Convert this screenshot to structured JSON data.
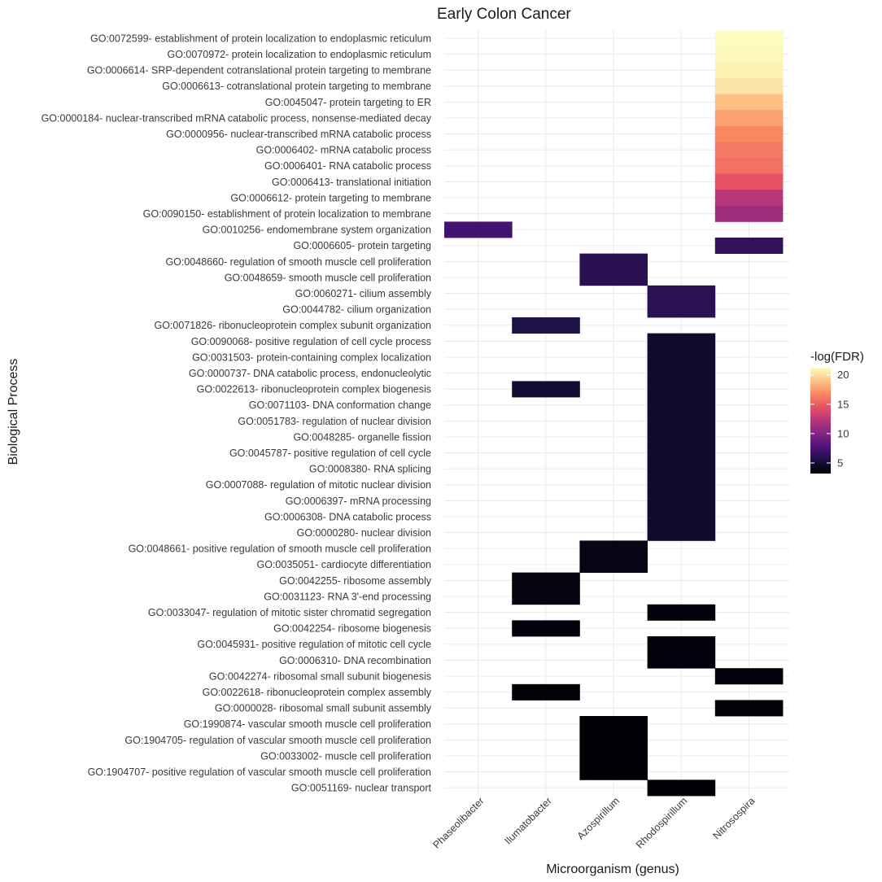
{
  "chart_data": {
    "type": "heatmap",
    "title": "Early Colon Cancer",
    "xlabel": "Microorganism (genus)",
    "ylabel": "Biological Process",
    "x_categories": [
      "Phaseolibacter",
      "Ilumatobacter",
      "Azospirillum",
      "Rhodospirillum",
      "Nitrosospira"
    ],
    "y_categories": [
      "GO:0072599- establishment of protein localization to endoplasmic reticulum",
      "GO:0070972- protein localization to endoplasmic reticulum",
      "GO:0006614- SRP-dependent cotranslational protein targeting to membrane",
      "GO:0006613- cotranslational protein targeting to membrane",
      "GO:0045047- protein targeting to ER",
      "GO:0000184- nuclear-transcribed mRNA catabolic process, nonsense-mediated decay",
      "GO:0000956- nuclear-transcribed mRNA catabolic process",
      "GO:0006402- mRNA catabolic process",
      "GO:0006401- RNA catabolic process",
      "GO:0006413- translational initiation",
      "GO:0006612- protein targeting to membrane",
      "GO:0090150- establishment of protein localization to membrane",
      "GO:0010256- endomembrane system organization",
      "GO:0006605- protein targeting",
      "GO:0048660- regulation of smooth muscle cell proliferation",
      "GO:0048659- smooth muscle cell proliferation",
      "GO:0060271- cilium assembly",
      "GO:0044782- cilium organization",
      "GO:0071826- ribonucleoprotein complex subunit organization",
      "GO:0090068- positive regulation of cell cycle process",
      "GO:0031503- protein-containing complex localization",
      "GO:0000737- DNA catabolic process, endonucleolytic",
      "GO:0022613- ribonucleoprotein complex biogenesis",
      "GO:0071103- DNA conformation change",
      "GO:0051783- regulation of nuclear division",
      "GO:0048285- organelle fission",
      "GO:0045787- positive regulation of cell cycle",
      "GO:0008380- RNA splicing",
      "GO:0007088- regulation of mitotic nuclear division",
      "GO:0006397- mRNA processing",
      "GO:0006308- DNA catabolic process",
      "GO:0000280- nuclear division",
      "GO:0048661- positive regulation of smooth muscle cell proliferation",
      "GO:0035051- cardiocyte differentiation",
      "GO:0042255- ribosome assembly",
      "GO:0031123- RNA 3'-end processing",
      "GO:0033047- regulation of mitotic sister chromatid segregation",
      "GO:0042254- ribosome biogenesis",
      "GO:0045931- positive regulation of mitotic cell cycle",
      "GO:0006310- DNA recombination",
      "GO:0042274- ribosomal small subunit biogenesis",
      "GO:0022618- ribonucleoprotein complex assembly",
      "GO:0000028- ribosomal small subunit assembly",
      "GO:1990874- vascular smooth muscle cell proliferation",
      "GO:1904705- regulation of vascular smooth muscle cell proliferation",
      "GO:0033002- muscle cell proliferation",
      "GO:1904707- positive regulation of vascular smooth muscle cell proliferation",
      "GO:0051169- nuclear transport"
    ],
    "cells": [
      {
        "x": "Nitrosospira",
        "y": "GO:0072599- establishment of protein localization to endoplasmic reticulum",
        "value": 21.2
      },
      {
        "x": "Nitrosospira",
        "y": "GO:0070972- protein localization to endoplasmic reticulum",
        "value": 21.0
      },
      {
        "x": "Nitrosospira",
        "y": "GO:0006614- SRP-dependent cotranslational protein targeting to membrane",
        "value": 20.8
      },
      {
        "x": "Nitrosospira",
        "y": "GO:0006613- cotranslational protein targeting to membrane",
        "value": 20.3
      },
      {
        "x": "Nitrosospira",
        "y": "GO:0045047- protein targeting to ER",
        "value": 18.8
      },
      {
        "x": "Nitrosospira",
        "y": "GO:0000184- nuclear-transcribed mRNA catabolic process, nonsense-mediated decay",
        "value": 17.7
      },
      {
        "x": "Nitrosospira",
        "y": "GO:0000956- nuclear-transcribed mRNA catabolic process",
        "value": 16.7
      },
      {
        "x": "Nitrosospira",
        "y": "GO:0006402- mRNA catabolic process",
        "value": 16.1
      },
      {
        "x": "Nitrosospira",
        "y": "GO:0006401- RNA catabolic process",
        "value": 15.8
      },
      {
        "x": "Nitrosospira",
        "y": "GO:0006413- translational initiation",
        "value": 14.5
      },
      {
        "x": "Nitrosospira",
        "y": "GO:0006612- protein targeting to membrane",
        "value": 12.3
      },
      {
        "x": "Nitrosospira",
        "y": "GO:0090150- establishment of protein localization to membrane",
        "value": 11.1
      },
      {
        "x": "Phaseolibacter",
        "y": "GO:0010256- endomembrane system organization",
        "value": 7.2
      },
      {
        "x": "Nitrosospira",
        "y": "GO:0006605- protein targeting",
        "value": 6.4
      },
      {
        "x": "Azospirillum",
        "y": "GO:0048660- regulation of smooth muscle cell proliferation",
        "value": 6.0
      },
      {
        "x": "Azospirillum",
        "y": "GO:0048659- smooth muscle cell proliferation",
        "value": 6.0
      },
      {
        "x": "Rhodospirillum",
        "y": "GO:0060271- cilium assembly",
        "value": 6.1
      },
      {
        "x": "Rhodospirillum",
        "y": "GO:0044782- cilium organization",
        "value": 6.1
      },
      {
        "x": "Ilumatobacter",
        "y": "GO:0071826- ribonucleoprotein complex subunit organization",
        "value": 5.6
      },
      {
        "x": "Rhodospirillum",
        "y": "GO:0090068- positive regulation of cell cycle process",
        "value": 4.6
      },
      {
        "x": "Rhodospirillum",
        "y": "GO:0031503- protein-containing complex localization",
        "value": 4.6
      },
      {
        "x": "Rhodospirillum",
        "y": "GO:0000737- DNA catabolic process, endonucleolytic",
        "value": 4.6
      },
      {
        "x": "Ilumatobacter",
        "y": "GO:0022613- ribonucleoprotein complex biogenesis",
        "value": 4.8
      },
      {
        "x": "Rhodospirillum",
        "y": "GO:0022613- ribonucleoprotein complex biogenesis",
        "value": 4.6
      },
      {
        "x": "Rhodospirillum",
        "y": "GO:0071103- DNA conformation change",
        "value": 4.6
      },
      {
        "x": "Rhodospirillum",
        "y": "GO:0051783- regulation of nuclear division",
        "value": 4.6
      },
      {
        "x": "Rhodospirillum",
        "y": "GO:0048285- organelle fission",
        "value": 4.6
      },
      {
        "x": "Rhodospirillum",
        "y": "GO:0045787- positive regulation of cell cycle",
        "value": 4.6
      },
      {
        "x": "Rhodospirillum",
        "y": "GO:0008380- RNA splicing",
        "value": 4.6
      },
      {
        "x": "Rhodospirillum",
        "y": "GO:0007088- regulation of mitotic nuclear division",
        "value": 4.6
      },
      {
        "x": "Rhodospirillum",
        "y": "GO:0006397- mRNA processing",
        "value": 4.6
      },
      {
        "x": "Rhodospirillum",
        "y": "GO:0006308- DNA catabolic process",
        "value": 4.6
      },
      {
        "x": "Rhodospirillum",
        "y": "GO:0000280- nuclear division",
        "value": 4.6
      },
      {
        "x": "Azospirillum",
        "y": "GO:0048661- positive regulation of smooth muscle cell proliferation",
        "value": 3.8
      },
      {
        "x": "Azospirillum",
        "y": "GO:0035051- cardiocyte differentiation",
        "value": 3.8
      },
      {
        "x": "Ilumatobacter",
        "y": "GO:0042255- ribosome assembly",
        "value": 3.6
      },
      {
        "x": "Ilumatobacter",
        "y": "GO:0031123- RNA 3'-end processing",
        "value": 3.6
      },
      {
        "x": "Rhodospirillum",
        "y": "GO:0033047- regulation of mitotic sister chromatid segregation",
        "value": 3.5
      },
      {
        "x": "Ilumatobacter",
        "y": "GO:0042254- ribosome biogenesis",
        "value": 3.5
      },
      {
        "x": "Rhodospirillum",
        "y": "GO:0045931- positive regulation of mitotic cell cycle",
        "value": 3.4
      },
      {
        "x": "Rhodospirillum",
        "y": "GO:0006310- DNA recombination",
        "value": 3.4
      },
      {
        "x": "Nitrosospira",
        "y": "GO:0042274- ribosomal small subunit biogenesis",
        "value": 3.4
      },
      {
        "x": "Ilumatobacter",
        "y": "GO:0022618- ribonucleoprotein complex assembly",
        "value": 3.3
      },
      {
        "x": "Nitrosospira",
        "y": "GO:0000028- ribosomal small subunit assembly",
        "value": 3.3
      },
      {
        "x": "Azospirillum",
        "y": "GO:1990874- vascular smooth muscle cell proliferation",
        "value": 3.2
      },
      {
        "x": "Azospirillum",
        "y": "GO:1904705- regulation of vascular smooth muscle cell proliferation",
        "value": 3.2
      },
      {
        "x": "Azospirillum",
        "y": "GO:0033002- muscle cell proliferation",
        "value": 3.2
      },
      {
        "x": "Azospirillum",
        "y": "GO:1904707- positive regulation of vascular smooth muscle cell proliferation",
        "value": 3.2
      },
      {
        "x": "Rhodospirillum",
        "y": "GO:0051169- nuclear transport",
        "value": 3.2
      }
    ],
    "legend": {
      "title": "-log(FDR)",
      "ticks": [
        5,
        10,
        15,
        20
      ],
      "range": [
        3.2,
        21.2
      ],
      "colormap": "magma",
      "placement": "right"
    },
    "grid": true
  }
}
